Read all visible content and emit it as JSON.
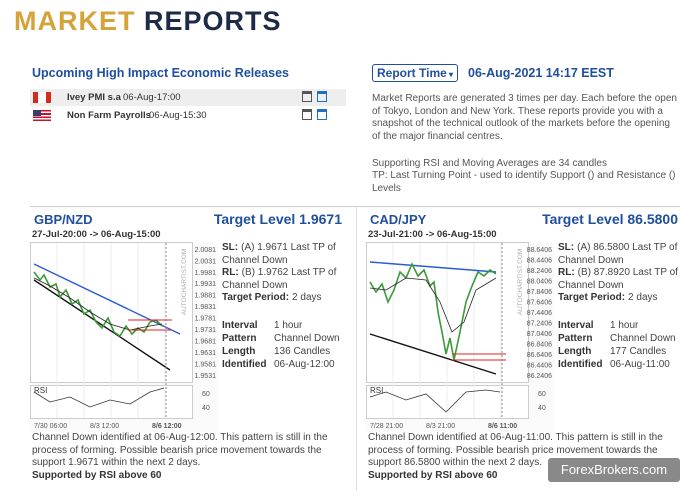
{
  "header": {
    "title_part1": "MARKET",
    "title_part2": "REPORTS"
  },
  "releases": {
    "title": "Upcoming High Impact Economic Releases",
    "rows": [
      {
        "name": "Ivey PMI s.a",
        "time": "06-Aug-17:00"
      },
      {
        "name": "Non Farm Payrolls",
        "time": "06-Aug-15:30"
      }
    ]
  },
  "report": {
    "dropdown": "Report Time",
    "time": "06-Aug-2021 14:17 EEST",
    "paragraphs": [
      "Market Reports are generated 3 times per day. Each before the open of Tokyo, London and New York. These reports provide you with a snapshot of the technical outlook of the markets before the opening of the major financial centres.",
      "Supporting RSI and Moving Averages are 34 candles",
      "TP: Last Turning Point - used to identify Support () and Resistance () Levels"
    ]
  },
  "panels": [
    {
      "pair": "GBP/NZD",
      "target": "Target Level 1.9671",
      "range": "27-Jul-20:00 -> 06-Aug-15:00",
      "yaxis": [
        "2.0081",
        "2.0031",
        "1.9981",
        "1.9931",
        "1.9881",
        "1.9831",
        "1.9781",
        "1.9731",
        "1.9681",
        "1.9631",
        "1.9581",
        "1.9531"
      ],
      "rsi_label": "RSI",
      "rsi_axis": [
        "60",
        "40"
      ],
      "xaxis": [
        "7/30 06:00",
        "8/3 12:00",
        "8/6 12:00"
      ],
      "watermark": "AUTOCHARTIST.COM",
      "sl_label": "SL:",
      "sl": "(A) 1.9671 Last TP of Channel Down",
      "rl_label": "RL:",
      "rl": "(B) 1.9762 Last TP of Channel Down",
      "period_label": "Target Period:",
      "period": "2 days",
      "details": [
        {
          "label": "Interval",
          "value": "1 hour"
        },
        {
          "label": "Pattern",
          "value": "Channel Down"
        },
        {
          "label": "Length",
          "value": "136 Candles"
        },
        {
          "label": "Identified",
          "value": "06-Aug-12:00"
        }
      ],
      "description": "Channel Down identified at 06-Aug-12:00. This pattern is still in the process of forming. Possible bearish price movement towards the support 1.9671 within the next 2 days.",
      "support": "Supported by RSI above 60"
    },
    {
      "pair": "CAD/JPY",
      "target": "Target Level 86.5800",
      "range": "23-Jul-21:00 -> 06-Aug-15:00",
      "yaxis": [
        "88.6406",
        "88.4406",
        "88.2406",
        "88.0406",
        "87.8406",
        "87.6406",
        "87.4406",
        "87.2406",
        "87.0406",
        "86.8406",
        "86.6406",
        "86.4406",
        "86.2406"
      ],
      "rsi_label": "RSI",
      "rsi_axis": [
        "60",
        "40"
      ],
      "xaxis": [
        "7/28 21:00",
        "8/3 21:00",
        "8/6 11:00"
      ],
      "watermark": "AUTOCHARTIST.COM",
      "sl_label": "SL:",
      "sl": "(A) 86.5800 Last TP of Channel Down",
      "rl_label": "RL:",
      "rl": "(B) 87.8920 Last TP of Channel Down",
      "period_label": "Target Period:",
      "period": "2 days",
      "details": [
        {
          "label": "Interval",
          "value": "1 hour"
        },
        {
          "label": "Pattern",
          "value": "Channel Down"
        },
        {
          "label": "Length",
          "value": "177 Candles"
        },
        {
          "label": "Identified",
          "value": "06-Aug-11:00"
        }
      ],
      "description": "Channel Down identified at 06-Aug-11:00. This pattern is still in the process of forming. Possible bearish price movement towards the support 86.5800 within the next 2 days.",
      "support": "Supported by RSI above 60"
    }
  ],
  "watermark": "ForexBrokers.com"
}
